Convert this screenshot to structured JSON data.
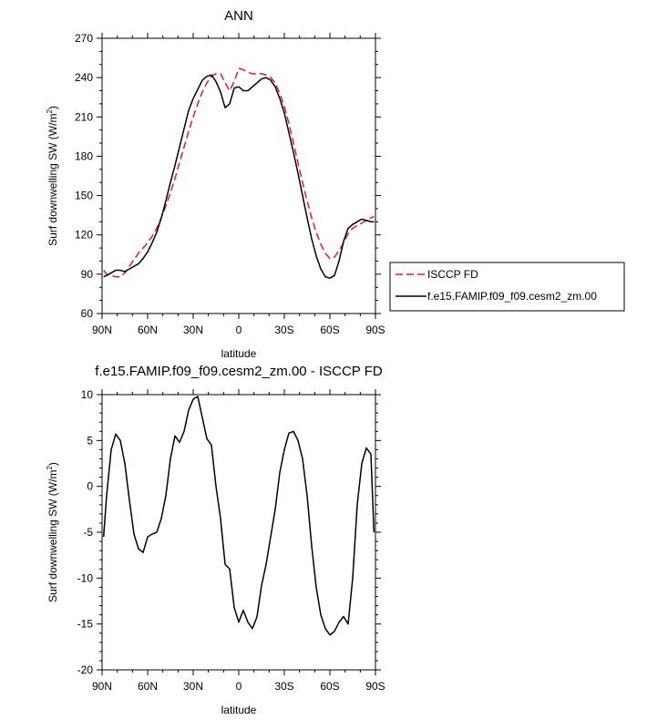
{
  "chart_data": [
    {
      "type": "line",
      "title": "ANN",
      "xlabel": "latitude",
      "ylabel_main": "Surf downwelling SW (W/m",
      "ylabel_sup": "2",
      "ylabel_end": ")",
      "xlim": [
        -90,
        90
      ],
      "ylim": [
        60,
        270
      ],
      "x_ticks": [
        -90,
        -60,
        -30,
        0,
        30,
        60,
        90
      ],
      "x_tick_labels": [
        "90N",
        "60N",
        "30N",
        "0",
        "30S",
        "60S",
        "90S"
      ],
      "y_ticks": [
        60,
        90,
        120,
        150,
        180,
        210,
        240,
        270
      ],
      "y_tick_labels": [
        "60",
        "90",
        "120",
        "150",
        "180",
        "210",
        "240",
        "270"
      ],
      "legend_position": "right",
      "series": [
        {
          "name": "ISCCP FD",
          "color": "#e8191c",
          "dash": "dashed",
          "x": [
            -89,
            -87,
            -84,
            -81,
            -78,
            -75,
            -72,
            -69,
            -66,
            -63,
            -60,
            -57,
            -54,
            -51,
            -48,
            -45,
            -42,
            -39,
            -36,
            -33,
            -30,
            -27,
            -24,
            -21,
            -18,
            -15,
            -12,
            -9,
            -6,
            -3,
            0,
            3,
            6,
            9,
            12,
            15,
            18,
            21,
            24,
            27,
            30,
            33,
            36,
            39,
            42,
            45,
            48,
            51,
            54,
            57,
            60,
            63,
            66,
            69,
            72,
            75,
            78,
            81,
            84,
            87,
            89
          ],
          "y": [
            93,
            90,
            89,
            88,
            88,
            91,
            96,
            101,
            106,
            110,
            114,
            119,
            125,
            133,
            142,
            152,
            163,
            175,
            187,
            199,
            210,
            220,
            229,
            236,
            241,
            243,
            243,
            236,
            230,
            237,
            247,
            246,
            244,
            243,
            243,
            243,
            242,
            240,
            236,
            228,
            218,
            205,
            190,
            175,
            160,
            146,
            133,
            122,
            113,
            106,
            102,
            103,
            108,
            114,
            121,
            125,
            127,
            129,
            131,
            133,
            134
          ]
        },
        {
          "name": "f.e15.FAMIP.f09_f09.cesm2_zm.00",
          "color": "#000000",
          "dash": "solid",
          "x": [
            -89,
            -87,
            -84,
            -81,
            -78,
            -75,
            -72,
            -69,
            -66,
            -63,
            -60,
            -57,
            -54,
            -51,
            -48,
            -45,
            -42,
            -39,
            -36,
            -33,
            -30,
            -27,
            -24,
            -21,
            -18,
            -15,
            -12,
            -9,
            -6,
            -3,
            0,
            3,
            6,
            9,
            12,
            15,
            18,
            21,
            24,
            27,
            30,
            33,
            36,
            39,
            42,
            45,
            48,
            51,
            54,
            57,
            60,
            63,
            66,
            69,
            72,
            75,
            78,
            81,
            84,
            87,
            89
          ],
          "y": [
            88,
            89,
            91,
            93,
            93,
            92,
            94,
            96,
            98,
            102,
            107,
            114,
            122,
            133,
            146,
            160,
            173,
            187,
            201,
            215,
            224,
            231,
            238,
            241,
            242,
            237,
            229,
            217,
            220,
            232,
            233,
            230,
            230,
            233,
            236,
            239,
            240,
            238,
            233,
            224,
            213,
            198,
            183,
            167,
            150,
            133,
            117,
            104,
            94,
            88,
            87,
            89,
            100,
            115,
            125,
            128,
            130,
            132,
            131,
            130,
            130
          ]
        }
      ]
    },
    {
      "type": "line",
      "title": "f.e15.FAMIP.f09_f09.cesm2_zm.00 - ISCCP FD",
      "xlabel": "latitude",
      "ylabel_main": "Surf downwelling SW (W/m",
      "ylabel_sup": "2",
      "ylabel_end": ")",
      "xlim": [
        -90,
        90
      ],
      "ylim": [
        -20,
        10
      ],
      "x_ticks": [
        -90,
        -60,
        -30,
        0,
        30,
        60,
        90
      ],
      "x_tick_labels": [
        "90N",
        "60N",
        "30N",
        "0",
        "30S",
        "60S",
        "90S"
      ],
      "y_ticks": [
        -20,
        -15,
        -10,
        -5,
        0,
        5,
        10
      ],
      "y_tick_labels": [
        "-20",
        "-15",
        "-10",
        "-5",
        "0",
        "5",
        "10"
      ],
      "series": [
        {
          "color": "#000000",
          "dash": "solid",
          "x": [
            -89,
            -87,
            -84,
            -81,
            -78,
            -75,
            -72,
            -69,
            -66,
            -63,
            -60,
            -57,
            -54,
            -51,
            -48,
            -45,
            -42,
            -39,
            -36,
            -33,
            -30,
            -27,
            -24,
            -21,
            -18,
            -15,
            -12,
            -9,
            -6,
            -3,
            0,
            3,
            6,
            9,
            12,
            15,
            18,
            21,
            24,
            27,
            30,
            33,
            36,
            39,
            42,
            45,
            48,
            51,
            54,
            57,
            60,
            63,
            66,
            69,
            72,
            75,
            78,
            81,
            84,
            87,
            89
          ],
          "y": [
            -5.5,
            -1,
            4,
            5.7,
            5,
            2.5,
            -1.5,
            -5.2,
            -6.8,
            -7.2,
            -5.5,
            -5.2,
            -5,
            -3.5,
            -1,
            3,
            5.5,
            4.8,
            6,
            8.3,
            9.5,
            9.8,
            7.5,
            5.2,
            4.5,
            0,
            -3.5,
            -8.5,
            -9,
            -13.2,
            -14.8,
            -13.5,
            -14.8,
            -15.5,
            -14.2,
            -10.8,
            -8.5,
            -5.5,
            -2.5,
            1.5,
            4,
            5.8,
            6,
            5,
            3,
            -1,
            -6.5,
            -11,
            -14,
            -15.5,
            -16.2,
            -15.8,
            -14.8,
            -14.2,
            -15,
            -10,
            -2,
            2.5,
            4.2,
            3.5,
            -5
          ]
        }
      ]
    }
  ]
}
